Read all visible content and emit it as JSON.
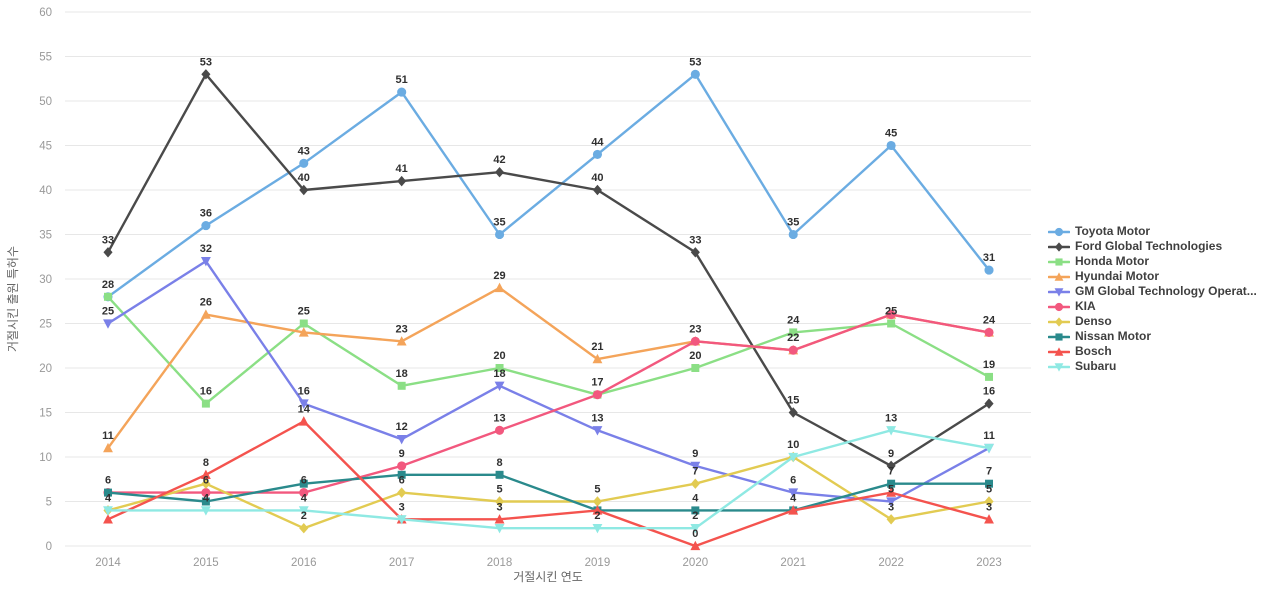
{
  "chart_data": {
    "type": "line",
    "title": "",
    "xlabel": "거절시킨 연도",
    "ylabel": "거절시킨 출원 특허수",
    "x": [
      2014,
      2015,
      2016,
      2017,
      2018,
      2019,
      2020,
      2021,
      2022,
      2023
    ],
    "ylim": [
      0,
      60
    ],
    "yticks": [
      0,
      5,
      10,
      15,
      20,
      25,
      30,
      35,
      40,
      45,
      50,
      55,
      60
    ],
    "grid": true,
    "legend_position": "right",
    "series": [
      {
        "name": "Toyota Motor",
        "color": "#6bace2",
        "marker": "circle",
        "values": [
          28,
          36,
          43,
          51,
          35,
          44,
          53,
          35,
          45,
          31
        ]
      },
      {
        "name": "Ford Global Technologies",
        "color": "#4a4a4a",
        "marker": "diamond",
        "values": [
          33,
          53,
          40,
          41,
          42,
          40,
          33,
          15,
          9,
          16
        ]
      },
      {
        "name": "Honda Motor",
        "color": "#8bdf85",
        "marker": "square",
        "values": [
          28,
          16,
          25,
          18,
          20,
          17,
          20,
          24,
          25,
          19
        ]
      },
      {
        "name": "Hyundai Motor",
        "color": "#f4a45a",
        "marker": "triangle-up",
        "values": [
          11,
          26,
          24,
          23,
          29,
          21,
          23,
          22,
          26,
          24
        ]
      },
      {
        "name": "GM Global Technology Operat...",
        "color": "#7a80e8",
        "marker": "triangle-down",
        "values": [
          25,
          32,
          16,
          12,
          18,
          13,
          9,
          6,
          5,
          11
        ]
      },
      {
        "name": "KIA",
        "color": "#f2587e",
        "marker": "circle",
        "values": [
          6,
          6,
          6,
          9,
          13,
          17,
          23,
          22,
          26,
          24
        ]
      },
      {
        "name": "Denso",
        "color": "#e2cb52",
        "marker": "diamond",
        "values": [
          4,
          7,
          2,
          6,
          5,
          5,
          7,
          10,
          3,
          5
        ]
      },
      {
        "name": "Nissan Motor",
        "color": "#2a8a8c",
        "marker": "square",
        "values": [
          6,
          5,
          7,
          8,
          8,
          4,
          4,
          4,
          7,
          7
        ]
      },
      {
        "name": "Bosch",
        "color": "#f4534e",
        "marker": "triangle-up",
        "values": [
          3,
          8,
          14,
          3,
          3,
          4,
          0,
          4,
          6,
          3
        ]
      },
      {
        "name": "Subaru",
        "color": "#8fe9e3",
        "marker": "triangle-down",
        "values": [
          4,
          4,
          4,
          3,
          2,
          2,
          2,
          10,
          13,
          11
        ]
      }
    ],
    "style": {
      "background": "#ffffff",
      "gridline_color": "#e7e7e7",
      "tick_label_color": "#999999",
      "axis_title_color": "#666666",
      "point_label_color": "#303030",
      "legend_text_color": "#3f3f3f"
    }
  }
}
